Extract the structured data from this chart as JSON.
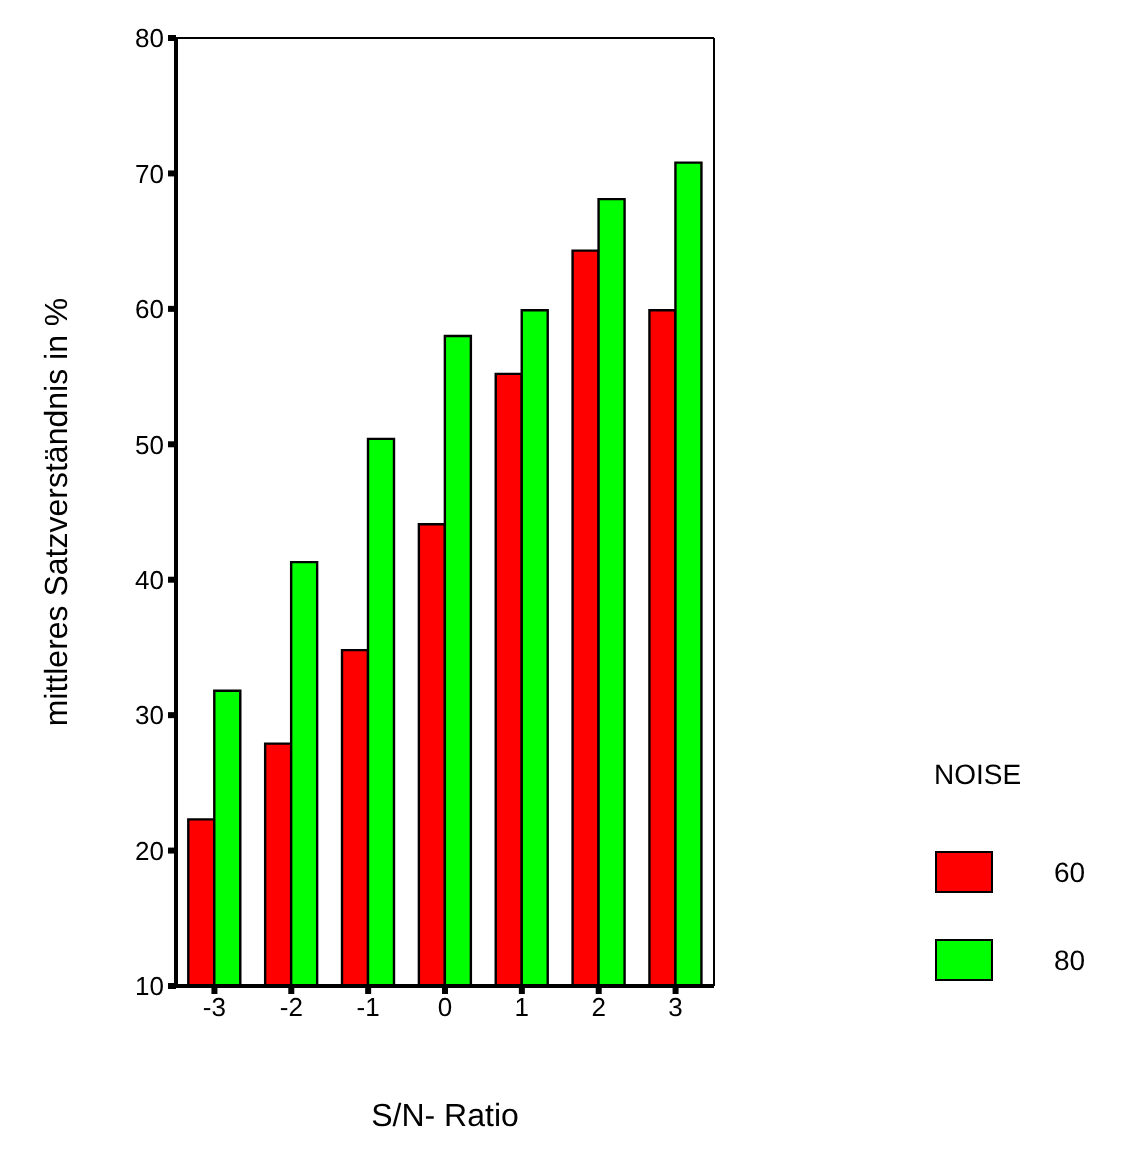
{
  "chart_data": {
    "type": "bar",
    "xlabel": "S/N- Ratio",
    "ylabel": "mittleres Satzverständnis in %",
    "legend_title": "NOISE",
    "categories": [
      "-3",
      "-2",
      "-1",
      "0",
      "1",
      "2",
      "3"
    ],
    "series": [
      {
        "name": "60",
        "color": "#ff0000",
        "values": [
          22.3,
          27.9,
          34.8,
          44.1,
          55.2,
          64.3,
          59.9
        ]
      },
      {
        "name": "80",
        "color": "#00ff00",
        "values": [
          31.8,
          41.3,
          50.4,
          58,
          59.9,
          68.1,
          70.8
        ]
      }
    ],
    "ylim": [
      10,
      80
    ],
    "yticks": [
      10,
      20,
      30,
      40,
      50,
      60,
      70,
      80
    ],
    "grid": false,
    "legend": "right"
  }
}
